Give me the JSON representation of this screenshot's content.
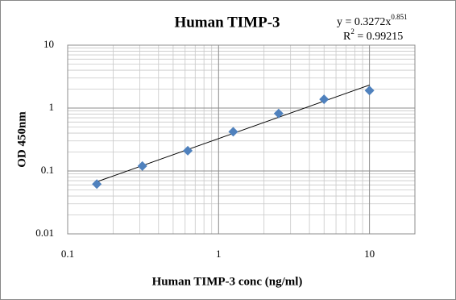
{
  "chart_data": {
    "type": "scatter",
    "title": "Human TIMP-3",
    "x_label": "Human TIMP-3 conc (ng/ml)",
    "y_label": "OD 450nm",
    "x": [
      0.156,
      0.3125,
      0.625,
      1.25,
      2.5,
      5,
      10
    ],
    "values": [
      0.062,
      0.12,
      0.21,
      0.42,
      0.82,
      1.38,
      1.9
    ],
    "color": "#4f81bd",
    "xlog": true,
    "ylog": true,
    "xlim": [
      0.1,
      20
    ],
    "ylim": [
      0.01,
      10
    ],
    "xticks": [
      0.1,
      1,
      10
    ],
    "yticks": [
      0.01,
      0.1,
      1,
      10
    ],
    "grid": "major-minor",
    "trendline": {
      "type": "power",
      "coefficient": 0.3272,
      "exponent": 0.851,
      "color": "#000000"
    },
    "equation_text": "y = 0.3272x",
    "equation_superscript": "0.851",
    "r2_text": "R",
    "r2_superscript": "2",
    "r2_value_text": " = 0.99215"
  }
}
